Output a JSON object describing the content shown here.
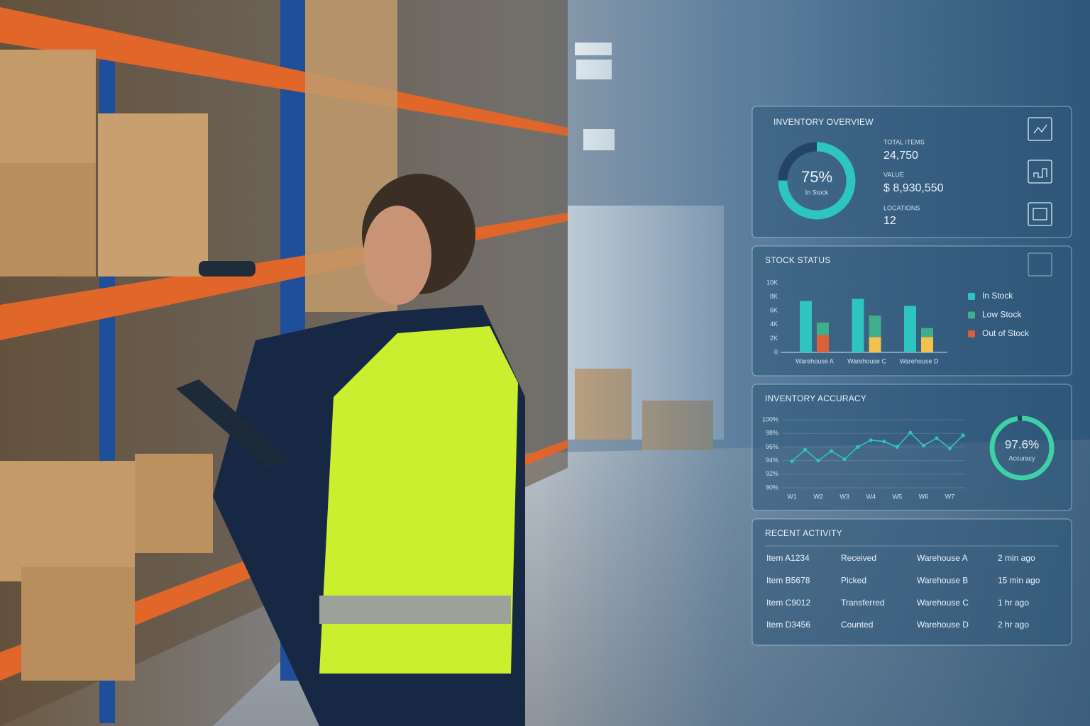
{
  "overview": {
    "title": "INVENTORY OVERVIEW",
    "donut": {
      "value": 75,
      "value_label": "75%",
      "caption": "In Stock"
    },
    "stats": [
      {
        "label": "TOTAL ITEMS",
        "value": "24,750"
      },
      {
        "label": "VALUE",
        "value": "$ 8,930,550"
      },
      {
        "label": "LOCATIONS",
        "value": "12"
      }
    ]
  },
  "chart_data": [
    {
      "type": "bar",
      "title": "STOCK STATUS",
      "categories": [
        "Warehouse A",
        "Warehouse C",
        "Warehouse D"
      ],
      "series": [
        {
          "name": "In Stock",
          "color": "#2ec4c0",
          "values": [
            7400,
            7700,
            6700
          ]
        },
        {
          "name": "Low Stock",
          "color": "#3fae8c",
          "values": [
            1800,
            3100,
            1300
          ]
        },
        {
          "name": "Out of Stock",
          "color": "#d9603b",
          "colors": [
            "#d9603b",
            "#f2c14e",
            "#f2c14e"
          ],
          "values": [
            2500,
            2200,
            2200
          ]
        }
      ],
      "ylim": [
        0,
        10000
      ],
      "yticks": [
        {
          "value": 0,
          "label": "0"
        },
        {
          "value": 2000,
          "label": "2K"
        },
        {
          "value": 4000,
          "label": "4K"
        },
        {
          "value": 6000,
          "label": "6K"
        },
        {
          "value": 8000,
          "label": "8K"
        },
        {
          "value": 10000,
          "label": "10K"
        }
      ]
    },
    {
      "type": "line",
      "title": "INVENTORY ACCURACY",
      "categories": [
        "W1",
        null,
        "W2",
        null,
        "W3",
        null,
        "W4",
        null,
        "W5",
        null,
        "W6",
        null,
        "W7",
        null
      ],
      "values": [
        93.9,
        95.6,
        94.0,
        95.4,
        94.2,
        96.0,
        97.0,
        96.8,
        96.0,
        98.1,
        96.2,
        97.3,
        95.8,
        97.7
      ],
      "color": "#2ec4c0",
      "ylim": [
        90,
        100
      ],
      "yticks": [
        {
          "value": 90,
          "label": "90%"
        },
        {
          "value": 92,
          "label": "92%"
        },
        {
          "value": 94,
          "label": "94%"
        },
        {
          "value": 96,
          "label": "96%"
        },
        {
          "value": 98,
          "label": "98%"
        },
        {
          "value": 100,
          "label": "100%"
        }
      ],
      "grid": true,
      "donut": {
        "value": 97.6,
        "value_label": "97.6%",
        "caption": "Accuracy"
      }
    }
  ],
  "recent_activity": {
    "title": "RECENT ACTIVITY",
    "rows": [
      [
        "Item A1234",
        "Received",
        "Warehouse A",
        "2 min ago"
      ],
      [
        "Item B5678",
        "Picked",
        "Warehouse B",
        "15 min ago"
      ],
      [
        "Item C9012",
        "Transferred",
        "Warehouse C",
        "1 hr ago"
      ],
      [
        "Item D3456",
        "Counted",
        "Warehouse D",
        "2 hr ago"
      ]
    ]
  }
}
